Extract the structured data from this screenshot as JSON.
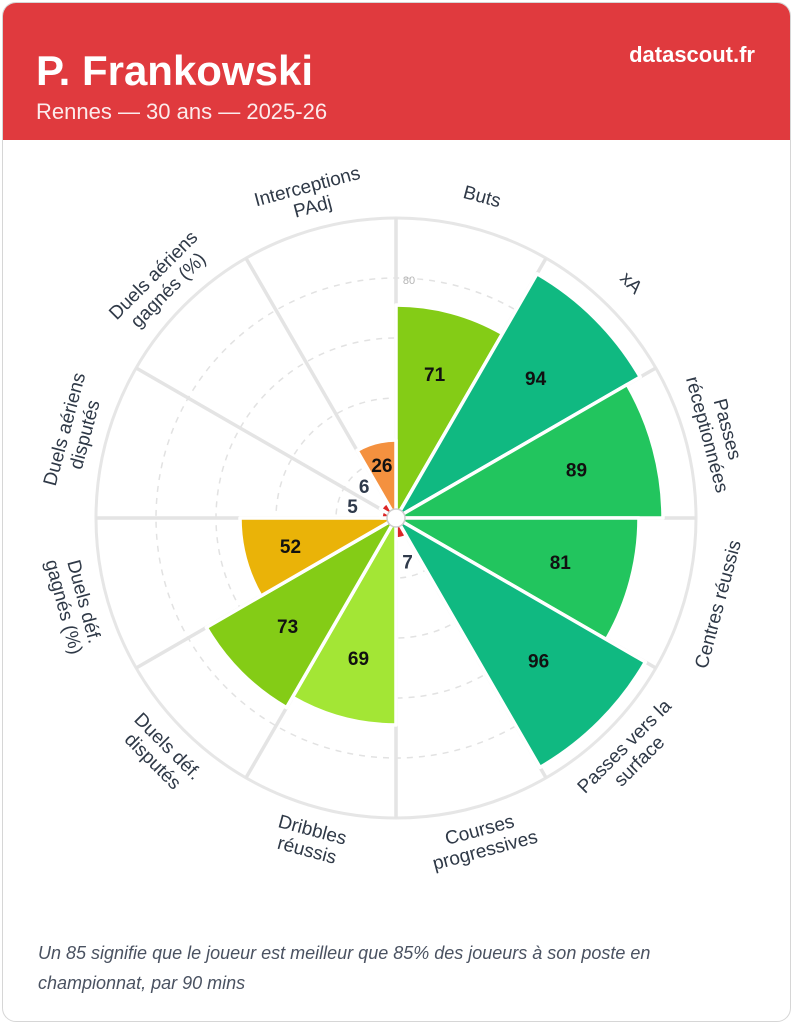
{
  "header": {
    "title": "P. Frankowski",
    "subtitle": "Rennes — 30 ans — 2025-26",
    "brand": "datascout.fr",
    "accent_color": "#e03a3e"
  },
  "chart_data": {
    "type": "bar",
    "polar": true,
    "categories": [
      "Buts",
      "xA",
      "Passes réceptionnées",
      "Centres réussis",
      "Passes vers la surface",
      "Courses progressives",
      "Dribbles réussis",
      "Duels déf. disputés",
      "Duels déf. gagnés (%)",
      "Duels aériens disputés",
      "Duels aériens gagnés (%)",
      "Interceptions PAdj"
    ],
    "values": [
      71,
      94,
      89,
      81,
      96,
      7,
      69,
      73,
      52,
      5,
      6,
      26
    ],
    "colors": [
      "#84cc16",
      "#10b981",
      "#22c55e",
      "#22c55e",
      "#10b981",
      "#dc2626",
      "#a3e635",
      "#84cc16",
      "#eab308",
      "#dc2626",
      "#dc2626",
      "#f4913f"
    ],
    "rlim": [
      0,
      100
    ],
    "grid": true,
    "grid_rings": [
      20,
      40,
      60,
      80
    ],
    "rticks": [
      80
    ]
  },
  "footer": {
    "note": "Un 85 signifie que le joueur est meilleur que 85% des joueurs à son poste en championnat, par 90 mins"
  }
}
